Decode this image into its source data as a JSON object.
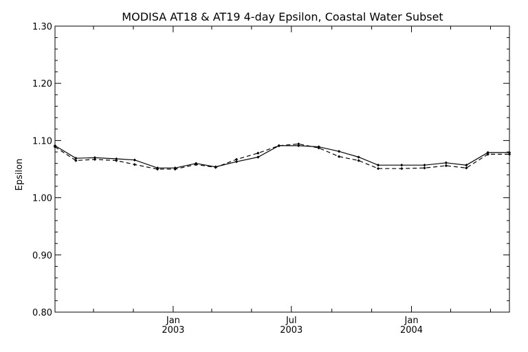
{
  "chart_data": {
    "type": "line",
    "title": "MODISA AT18 & AT19 4-day Epsilon, Coastal Water Subset",
    "ylabel": "Epsilon",
    "xlabel": "",
    "ylim": [
      0.8,
      1.3
    ],
    "xlim": [
      "2002-07-04",
      "2004-05-30"
    ],
    "yticks": [
      0.8,
      0.9,
      1.0,
      1.1,
      1.2,
      1.3
    ],
    "ytick_labels": [
      "0.80",
      "0.90",
      "1.00",
      "1.10",
      "1.20",
      "1.30"
    ],
    "xticks": [
      {
        "date": "2003-01-01",
        "line1": "Jan",
        "line2": "2003"
      },
      {
        "date": "2003-07-01",
        "line1": "Jul",
        "line2": "2003"
      },
      {
        "date": "2004-01-01",
        "line1": "Jan",
        "line2": "2004"
      }
    ],
    "grid": false,
    "series": [
      {
        "style": "solid",
        "x": [
          "2002-07-04",
          "2002-08-05",
          "2002-09-03",
          "2002-10-06",
          "2002-11-03",
          "2002-12-08",
          "2003-01-04",
          "2003-02-05",
          "2003-03-07",
          "2003-04-08",
          "2003-05-11",
          "2003-06-12",
          "2003-07-12",
          "2003-08-12",
          "2003-09-12",
          "2003-10-12",
          "2003-11-11",
          "2003-12-17",
          "2004-01-21",
          "2004-02-23",
          "2004-03-25",
          "2004-04-27",
          "2004-05-30"
        ],
        "values": [
          1.091,
          1.069,
          1.07,
          1.068,
          1.066,
          1.052,
          1.052,
          1.06,
          1.054,
          1.063,
          1.071,
          1.091,
          1.091,
          1.089,
          1.081,
          1.071,
          1.057,
          1.057,
          1.057,
          1.061,
          1.057,
          1.079,
          1.079
        ]
      },
      {
        "style": "dashed",
        "x": [
          "2002-07-04",
          "2002-08-05",
          "2002-09-03",
          "2002-10-06",
          "2002-11-03",
          "2002-12-08",
          "2003-01-04",
          "2003-02-05",
          "2003-03-07",
          "2003-04-08",
          "2003-05-11",
          "2003-06-12",
          "2003-07-12",
          "2003-08-12",
          "2003-09-12",
          "2003-10-12",
          "2003-11-11",
          "2003-12-17",
          "2004-01-21",
          "2004-02-23",
          "2004-03-25",
          "2004-04-27",
          "2004-05-30"
        ],
        "values": [
          1.089,
          1.065,
          1.067,
          1.065,
          1.058,
          1.05,
          1.05,
          1.058,
          1.053,
          1.067,
          1.078,
          1.091,
          1.094,
          1.087,
          1.072,
          1.065,
          1.051,
          1.051,
          1.052,
          1.056,
          1.052,
          1.076,
          1.076
        ]
      }
    ]
  }
}
